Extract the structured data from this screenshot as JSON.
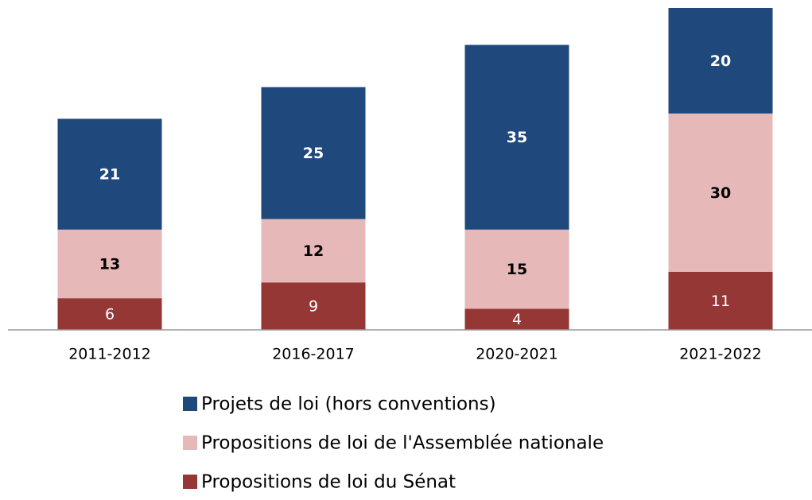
{
  "chart_data": {
    "type": "bar",
    "stacked": true,
    "categories": [
      "2011-2012",
      "2016-2017",
      "2020-2021",
      "2021-2022"
    ],
    "series": [
      {
        "name": "Projets de loi (hors conventions)",
        "color": "#1f497d",
        "values": [
          21,
          25,
          35,
          20
        ]
      },
      {
        "name": "Propositions de loi de l'Assemblée nationale",
        "color": "#e6b9b8",
        "values": [
          13,
          12,
          15,
          30
        ]
      },
      {
        "name": "Propositions de loi du Sénat",
        "color": "#953735",
        "values": [
          6,
          9,
          4,
          11
        ]
      }
    ],
    "ylim": [
      0,
      61
    ]
  }
}
